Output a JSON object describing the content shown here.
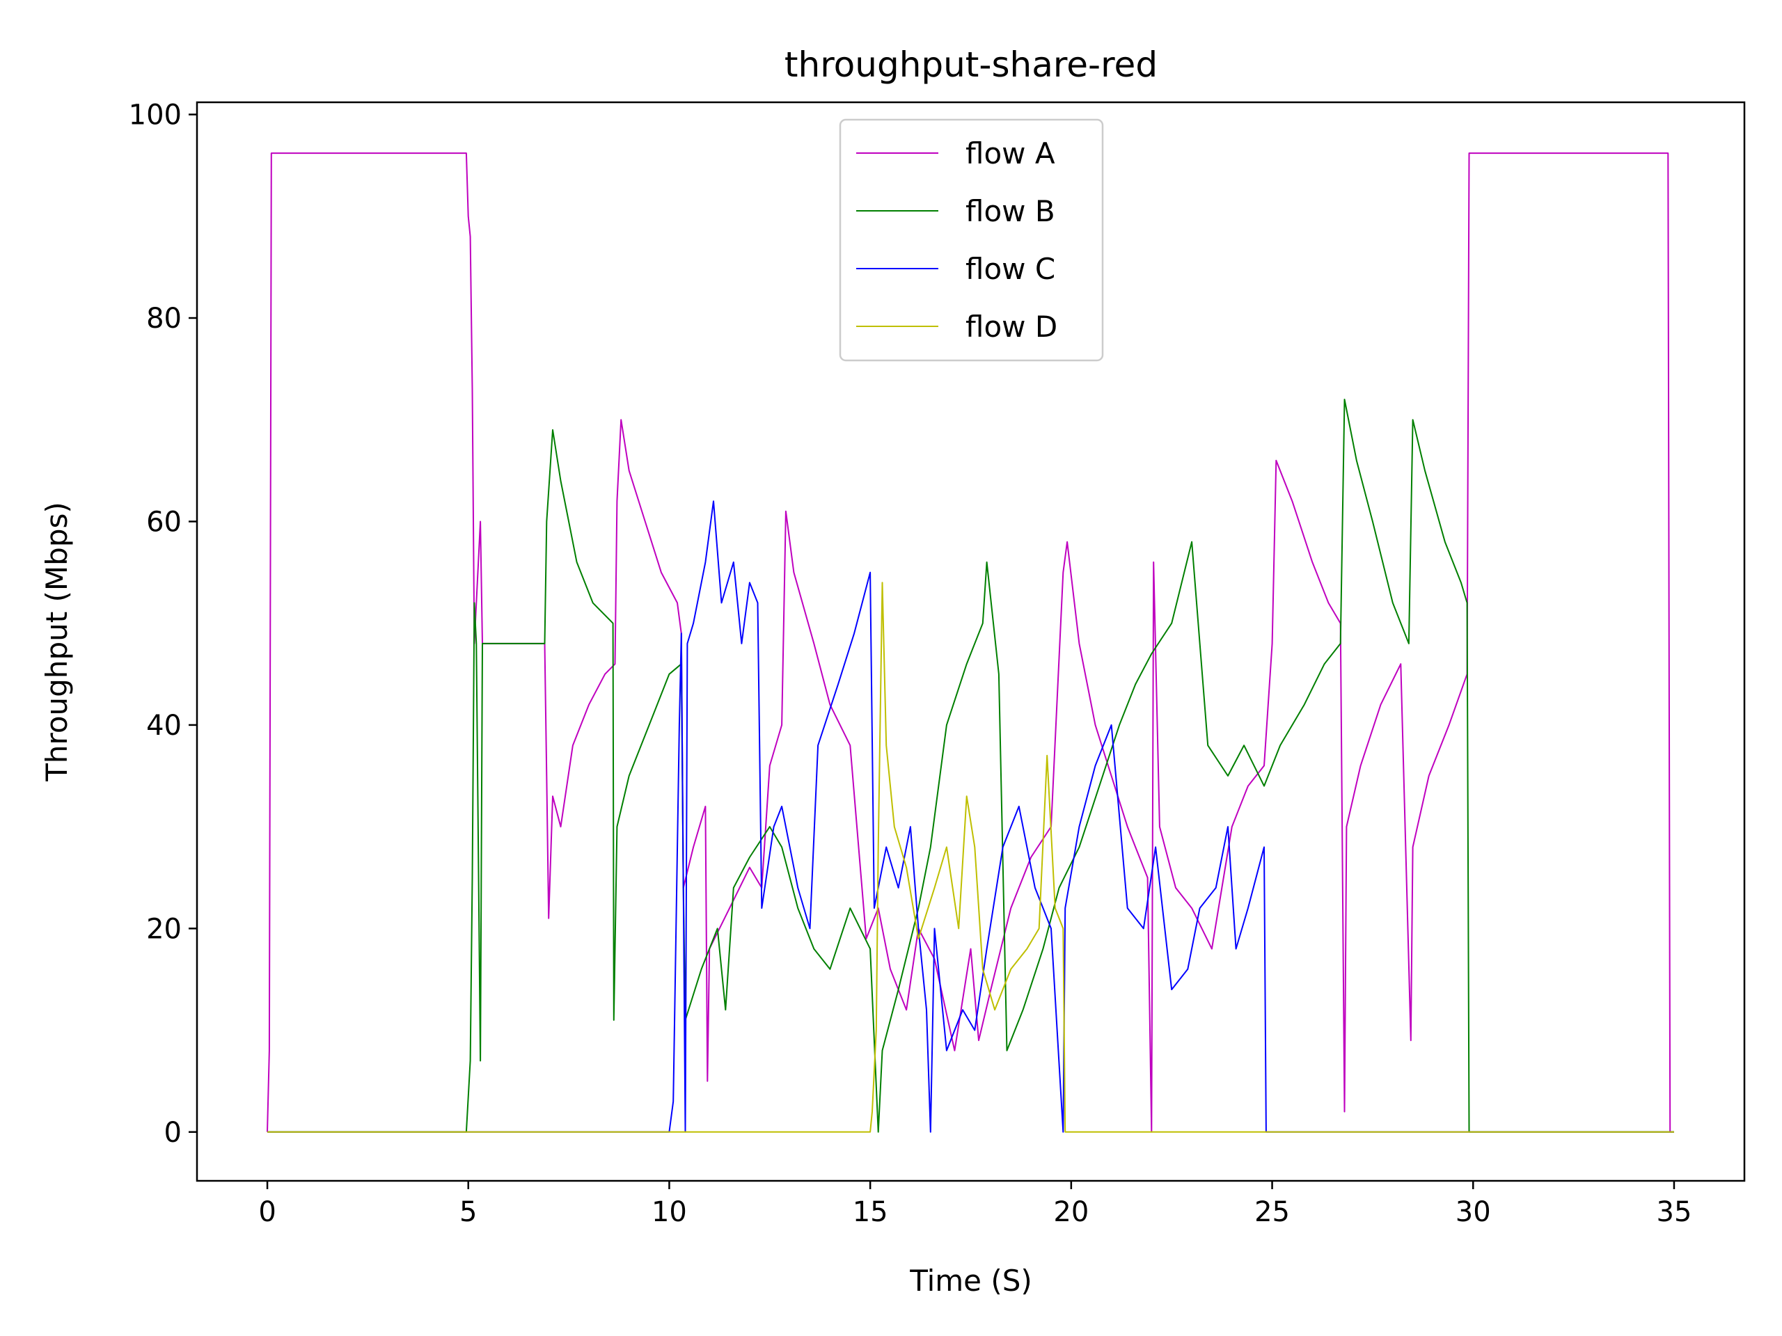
{
  "chart_data": {
    "type": "line",
    "title": "throughput-share-red",
    "xlabel": "Time (S)",
    "ylabel": "Throughput (Mbps)",
    "xlim": [
      -1.75,
      36.75
    ],
    "ylim": [
      -4.8,
      101.2
    ],
    "xticks": [
      0,
      5,
      10,
      15,
      20,
      25,
      30,
      35
    ],
    "yticks": [
      0,
      20,
      40,
      60,
      80,
      100
    ],
    "grid": false,
    "legend_position": "top-center",
    "series": [
      {
        "name": "flow A",
        "color": "#bf00bf",
        "points": [
          [
            0,
            0
          ],
          [
            0.05,
            8
          ],
          [
            0.1,
            96.2
          ],
          [
            4.95,
            96.2
          ],
          [
            5.0,
            90
          ],
          [
            5.05,
            88
          ],
          [
            5.1,
            73
          ],
          [
            5.15,
            48
          ],
          [
            5.3,
            60
          ],
          [
            5.35,
            48
          ],
          [
            6.9,
            48
          ],
          [
            6.95,
            35
          ],
          [
            7.0,
            21
          ],
          [
            7.1,
            33
          ],
          [
            7.3,
            30
          ],
          [
            7.6,
            38
          ],
          [
            8.0,
            42
          ],
          [
            8.4,
            45
          ],
          [
            8.65,
            46
          ],
          [
            8.7,
            62
          ],
          [
            8.8,
            70
          ],
          [
            9.0,
            65
          ],
          [
            9.4,
            60
          ],
          [
            9.8,
            55
          ],
          [
            10.2,
            52
          ],
          [
            10.3,
            49
          ],
          [
            10.35,
            24
          ],
          [
            10.6,
            28
          ],
          [
            10.9,
            32
          ],
          [
            10.95,
            5
          ],
          [
            11.0,
            18
          ],
          [
            11.5,
            22
          ],
          [
            12.0,
            26
          ],
          [
            12.3,
            24
          ],
          [
            12.5,
            36
          ],
          [
            12.8,
            40
          ],
          [
            12.9,
            61
          ],
          [
            13.1,
            55
          ],
          [
            13.6,
            48
          ],
          [
            14.0,
            42
          ],
          [
            14.5,
            38
          ],
          [
            14.9,
            19
          ],
          [
            15.2,
            22
          ],
          [
            15.5,
            16
          ],
          [
            15.9,
            12
          ],
          [
            16.2,
            20
          ],
          [
            16.6,
            17
          ],
          [
            17.1,
            8
          ],
          [
            17.5,
            18
          ],
          [
            17.7,
            9
          ],
          [
            18.0,
            14
          ],
          [
            18.5,
            22
          ],
          [
            19.0,
            27
          ],
          [
            19.5,
            30
          ],
          [
            19.8,
            55
          ],
          [
            19.9,
            58
          ],
          [
            20.2,
            48
          ],
          [
            20.6,
            40
          ],
          [
            21.0,
            35
          ],
          [
            21.4,
            30
          ],
          [
            21.6,
            28
          ],
          [
            21.9,
            25
          ],
          [
            22.0,
            0
          ],
          [
            22.05,
            56
          ],
          [
            22.2,
            30
          ],
          [
            22.6,
            24
          ],
          [
            23.0,
            22
          ],
          [
            23.5,
            18
          ],
          [
            24.0,
            30
          ],
          [
            24.4,
            34
          ],
          [
            24.8,
            36
          ],
          [
            25.0,
            48
          ],
          [
            25.1,
            66
          ],
          [
            25.5,
            62
          ],
          [
            26.0,
            56
          ],
          [
            26.4,
            52
          ],
          [
            26.7,
            50
          ],
          [
            26.8,
            2
          ],
          [
            26.85,
            30
          ],
          [
            27.2,
            36
          ],
          [
            27.7,
            42
          ],
          [
            28.2,
            46
          ],
          [
            28.45,
            9
          ],
          [
            28.5,
            28
          ],
          [
            28.9,
            35
          ],
          [
            29.4,
            40
          ],
          [
            29.85,
            45
          ],
          [
            29.9,
            96.2
          ],
          [
            34.85,
            96.2
          ],
          [
            34.9,
            0
          ],
          [
            35,
            0
          ]
        ]
      },
      {
        "name": "flow B",
        "color": "#007f00",
        "points": [
          [
            0,
            0
          ],
          [
            4.95,
            0
          ],
          [
            5.05,
            7
          ],
          [
            5.1,
            25
          ],
          [
            5.15,
            52
          ],
          [
            5.2,
            48
          ],
          [
            5.3,
            7
          ],
          [
            5.35,
            48
          ],
          [
            6.9,
            48
          ],
          [
            6.95,
            60
          ],
          [
            7.1,
            69
          ],
          [
            7.3,
            64
          ],
          [
            7.7,
            56
          ],
          [
            8.1,
            52
          ],
          [
            8.6,
            50
          ],
          [
            8.62,
            11
          ],
          [
            8.7,
            30
          ],
          [
            9.0,
            35
          ],
          [
            9.5,
            40
          ],
          [
            10.0,
            45
          ],
          [
            10.3,
            46
          ],
          [
            10.35,
            24
          ],
          [
            10.4,
            11
          ],
          [
            10.8,
            16
          ],
          [
            11.2,
            20
          ],
          [
            11.4,
            12
          ],
          [
            11.6,
            24
          ],
          [
            12.0,
            27
          ],
          [
            12.5,
            30
          ],
          [
            12.8,
            28
          ],
          [
            13.2,
            22
          ],
          [
            13.6,
            18
          ],
          [
            14.0,
            16
          ],
          [
            14.5,
            22
          ],
          [
            15.0,
            18
          ],
          [
            15.2,
            0
          ],
          [
            15.3,
            8
          ],
          [
            15.7,
            14
          ],
          [
            16.2,
            22
          ],
          [
            16.5,
            28
          ],
          [
            16.9,
            40
          ],
          [
            17.4,
            46
          ],
          [
            17.8,
            50
          ],
          [
            17.9,
            56
          ],
          [
            18.2,
            45
          ],
          [
            18.4,
            8
          ],
          [
            18.8,
            12
          ],
          [
            19.3,
            18
          ],
          [
            19.7,
            24
          ],
          [
            20.2,
            28
          ],
          [
            20.7,
            34
          ],
          [
            21.2,
            40
          ],
          [
            21.6,
            44
          ],
          [
            22.0,
            47
          ],
          [
            22.5,
            50
          ],
          [
            23.0,
            58
          ],
          [
            23.4,
            38
          ],
          [
            23.9,
            35
          ],
          [
            24.3,
            38
          ],
          [
            24.8,
            34
          ],
          [
            25.2,
            38
          ],
          [
            25.8,
            42
          ],
          [
            26.3,
            46
          ],
          [
            26.7,
            48
          ],
          [
            26.8,
            72
          ],
          [
            27.1,
            66
          ],
          [
            27.5,
            60
          ],
          [
            28.0,
            52
          ],
          [
            28.4,
            48
          ],
          [
            28.5,
            70
          ],
          [
            28.8,
            65
          ],
          [
            29.3,
            58
          ],
          [
            29.7,
            54
          ],
          [
            29.85,
            52
          ],
          [
            29.9,
            0
          ],
          [
            35,
            0
          ]
        ]
      },
      {
        "name": "flow C",
        "color": "#0000ff",
        "points": [
          [
            0,
            0
          ],
          [
            10.0,
            0
          ],
          [
            10.1,
            3
          ],
          [
            10.25,
            40
          ],
          [
            10.3,
            49
          ],
          [
            10.4,
            0
          ],
          [
            10.45,
            48
          ],
          [
            10.6,
            50
          ],
          [
            10.9,
            56
          ],
          [
            11.1,
            62
          ],
          [
            11.3,
            52
          ],
          [
            11.6,
            56
          ],
          [
            11.8,
            48
          ],
          [
            12.0,
            54
          ],
          [
            12.2,
            52
          ],
          [
            12.3,
            22
          ],
          [
            12.6,
            30
          ],
          [
            12.8,
            32
          ],
          [
            13.2,
            24
          ],
          [
            13.5,
            20
          ],
          [
            13.7,
            38
          ],
          [
            14.2,
            44
          ],
          [
            14.6,
            49
          ],
          [
            15.0,
            55
          ],
          [
            15.1,
            22
          ],
          [
            15.4,
            28
          ],
          [
            15.7,
            24
          ],
          [
            16.0,
            30
          ],
          [
            16.2,
            20
          ],
          [
            16.4,
            12
          ],
          [
            16.5,
            0
          ],
          [
            16.6,
            20
          ],
          [
            16.9,
            8
          ],
          [
            17.3,
            12
          ],
          [
            17.6,
            10
          ],
          [
            17.9,
            18
          ],
          [
            18.3,
            28
          ],
          [
            18.7,
            32
          ],
          [
            19.1,
            24
          ],
          [
            19.5,
            20
          ],
          [
            19.8,
            0
          ],
          [
            19.85,
            22
          ],
          [
            20.2,
            30
          ],
          [
            20.6,
            36
          ],
          [
            21.0,
            40
          ],
          [
            21.4,
            22
          ],
          [
            21.8,
            20
          ],
          [
            22.1,
            28
          ],
          [
            22.5,
            14
          ],
          [
            22.9,
            16
          ],
          [
            23.2,
            22
          ],
          [
            23.6,
            24
          ],
          [
            23.9,
            30
          ],
          [
            24.1,
            18
          ],
          [
            24.4,
            22
          ],
          [
            24.8,
            28
          ],
          [
            24.85,
            0
          ],
          [
            35,
            0
          ]
        ]
      },
      {
        "name": "flow D",
        "color": "#bfbf00",
        "points": [
          [
            0,
            0
          ],
          [
            15.0,
            0
          ],
          [
            15.05,
            2
          ],
          [
            15.15,
            10
          ],
          [
            15.2,
            28
          ],
          [
            15.3,
            54
          ],
          [
            15.4,
            38
          ],
          [
            15.6,
            30
          ],
          [
            15.9,
            26
          ],
          [
            16.2,
            19
          ],
          [
            16.6,
            24
          ],
          [
            16.9,
            28
          ],
          [
            17.2,
            20
          ],
          [
            17.4,
            33
          ],
          [
            17.6,
            28
          ],
          [
            17.8,
            16
          ],
          [
            18.1,
            12
          ],
          [
            18.5,
            16
          ],
          [
            18.9,
            18
          ],
          [
            19.2,
            20
          ],
          [
            19.4,
            37
          ],
          [
            19.6,
            22
          ],
          [
            19.8,
            20
          ],
          [
            19.85,
            0
          ],
          [
            35,
            0
          ]
        ]
      }
    ]
  }
}
